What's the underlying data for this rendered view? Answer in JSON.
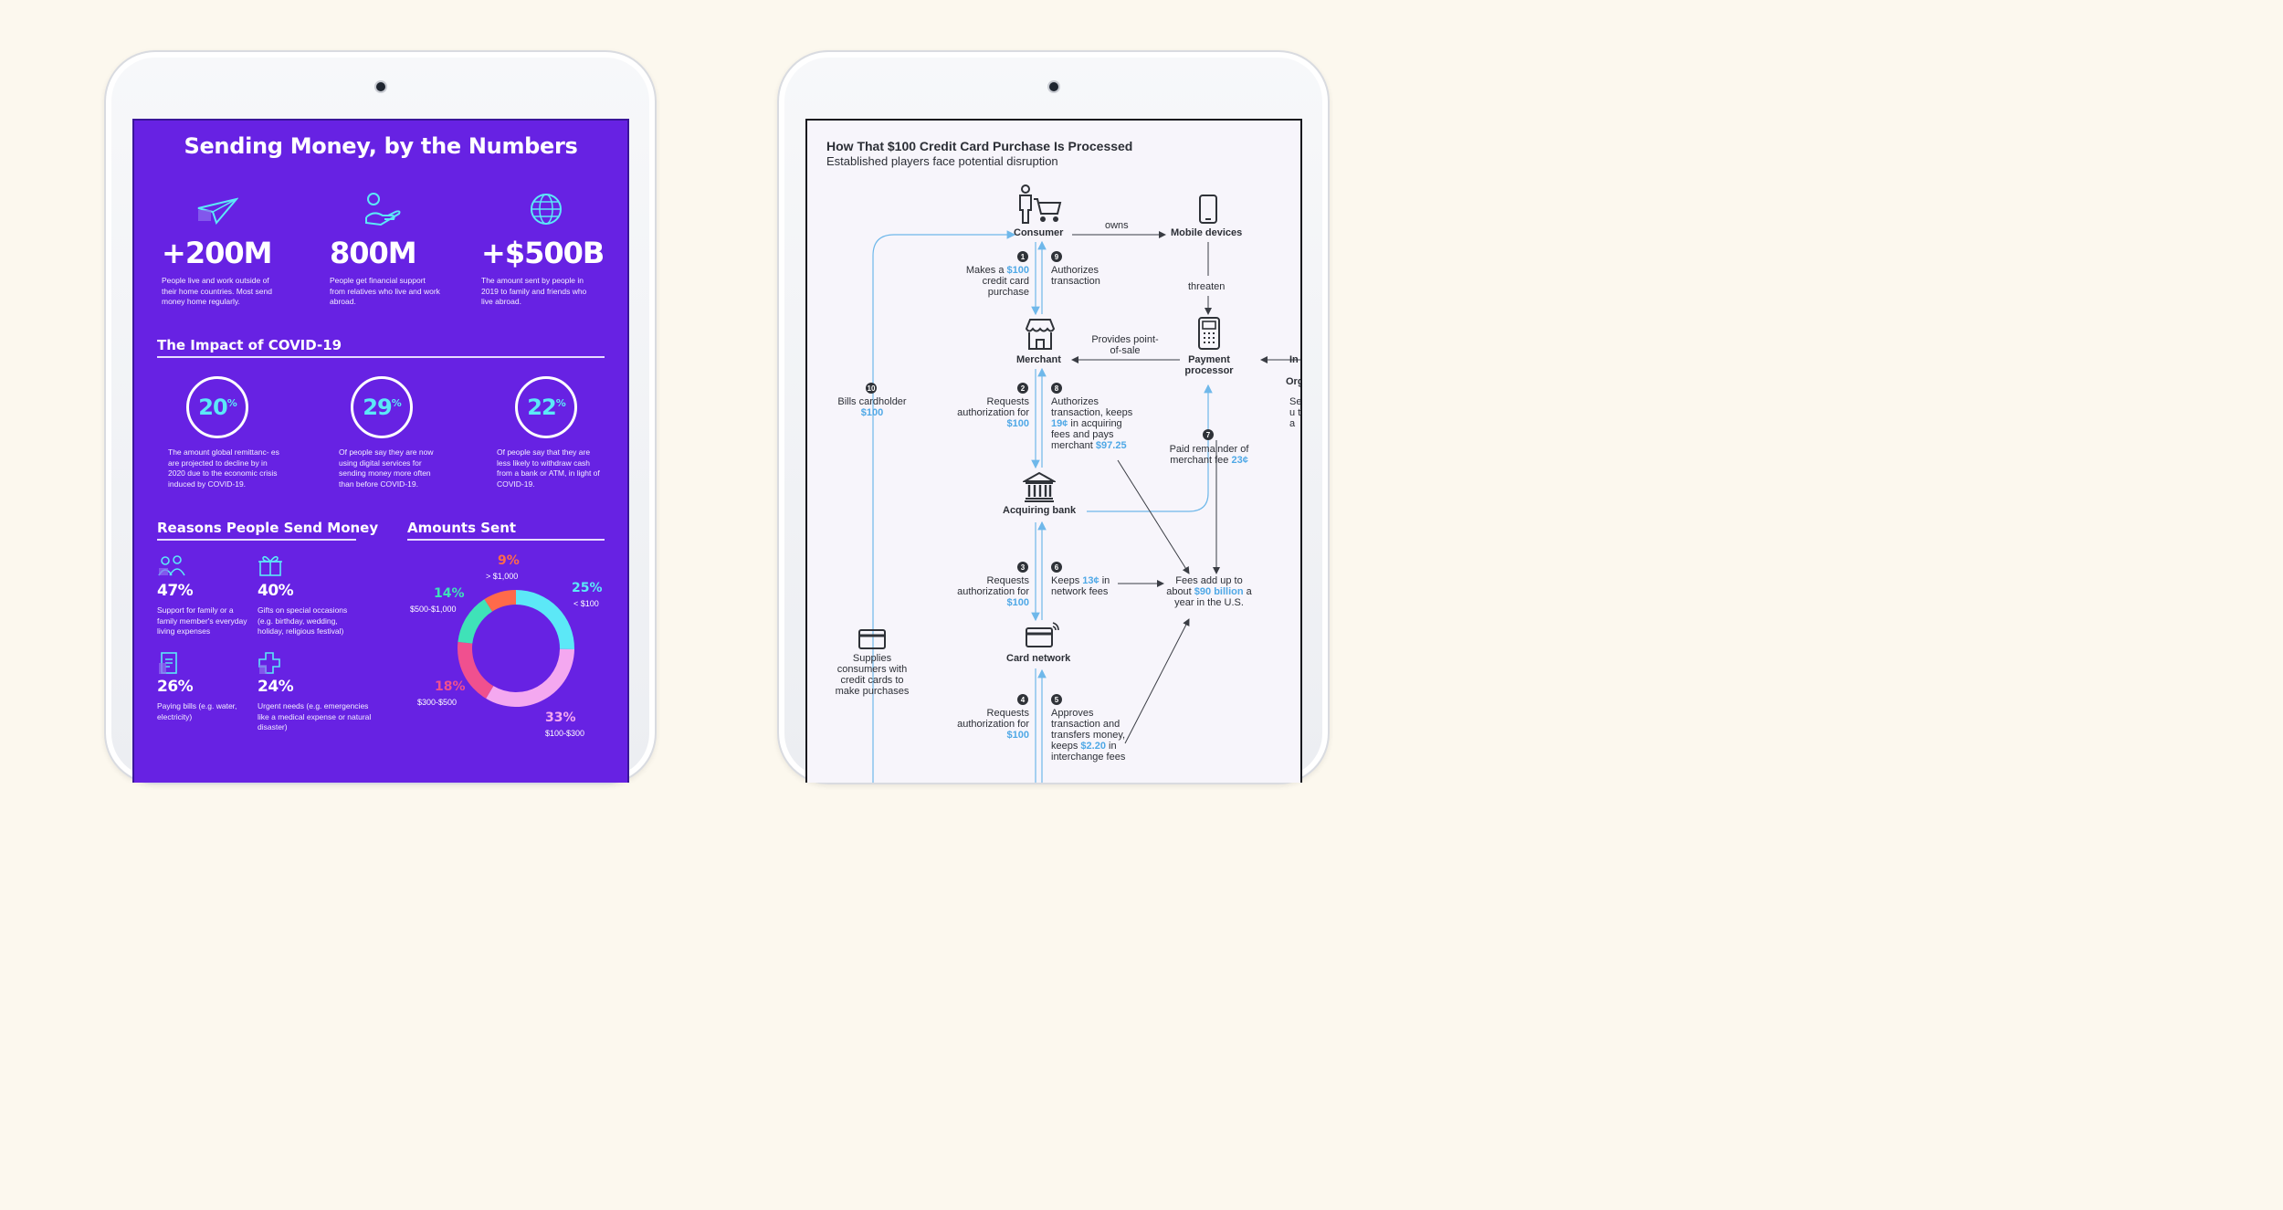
{
  "left": {
    "title": "Sending Money, by the Numbers",
    "stats": [
      {
        "icon": "paper-plane-icon",
        "value": "+200M",
        "text": "People live and work outside of their home countries. Most send money home regularly."
      },
      {
        "icon": "hand-coin-icon",
        "value": "800M",
        "text": "People get financial support from relatives who live and work abroad."
      },
      {
        "icon": "globe-icon",
        "value": "+$500B",
        "text": "The amount sent by people in 2019 to family and friends who live abroad."
      }
    ],
    "covid": {
      "heading": "The Impact of COVID-19",
      "items": [
        {
          "value": "20",
          "unit": "%",
          "text": "The amount global remittanc- es are projected to decline by in 2020 due to the economic crisis induced by COVID-19."
        },
        {
          "value": "29",
          "unit": "%",
          "text": "Of people say they are now using digital services for sending money more often than before COVID-19."
        },
        {
          "value": "22",
          "unit": "%",
          "text": "Of people say that they are less likely to withdraw cash from a bank or ATM, in light of COVID-19."
        }
      ]
    },
    "reasons": {
      "heading": "Reasons People Send Money",
      "items": [
        {
          "icon": "family-icon",
          "value": "47%",
          "text": "Support for family or a family member's everyday living expenses"
        },
        {
          "icon": "gift-icon",
          "value": "40%",
          "text": "Gifts on special occasions (e.g. birthday, wedding, holiday, religious festival)"
        },
        {
          "icon": "bill-icon",
          "value": "26%",
          "text": "Paying bills (e.g. water, electricity)"
        },
        {
          "icon": "medical-cross-icon",
          "value": "24%",
          "text": "Urgent needs (e.g. emergencies like a medical expense or natural disaster)"
        }
      ]
    },
    "amounts": {
      "heading": "Amounts Sent",
      "chart_data": {
        "type": "pie",
        "title": "Amounts Sent",
        "categories": [
          "< $100",
          "$100-$300",
          "$300-$500",
          "$500-$1,000",
          "> $1,000"
        ],
        "values": [
          25,
          33,
          18,
          14,
          9
        ],
        "labels": [
          "25%",
          "33%",
          "18%",
          "14%",
          "9%"
        ],
        "colors": [
          "#5ce8f7",
          "#f4a8f0",
          "#f0508f",
          "#3fe2b8",
          "#ff6a4a"
        ]
      }
    }
  },
  "right": {
    "title": "How That $100 Credit Card Purchase Is Processed",
    "subtitle": "Established players face potential disruption",
    "nodes": {
      "consumer": "Consumer",
      "mobile": "Mobile devices",
      "merchant": "Merchant",
      "processor": "Payment processor",
      "acquiring": "Acquiring bank",
      "network": "Card network",
      "issuer_cut": "In",
      "org_cut": "Org"
    },
    "edges": {
      "owns": "owns",
      "threaten": "threaten",
      "pos": "Provides point-of-sale",
      "set_cut": "Set u to a"
    },
    "steps": {
      "s1": {
        "num": "1",
        "pre": "Makes a",
        "amt": "$100",
        "post": "credit card purchase"
      },
      "s9": {
        "num": "9",
        "text": "Authorizes transaction"
      },
      "s10": {
        "num": "10",
        "pre": "Bills cardholder",
        "amt": "$100"
      },
      "s2": {
        "num": "2",
        "pre": "Requests authorization for",
        "amt": "$100"
      },
      "s8": {
        "num": "8",
        "pre": "Authorizes transaction, keeps",
        "amt": "19¢",
        "mid": "in acquiring fees and pays merchant",
        "amt2": "$97.25"
      },
      "s7": {
        "num": "7",
        "pre": "Paid remainder of merchant fee",
        "amt": "23¢"
      },
      "s3": {
        "num": "3",
        "pre": "Requests authorization for",
        "amt": "$100"
      },
      "s6": {
        "num": "6",
        "pre": "Keeps",
        "amt": "13¢",
        "post": "in network fees"
      },
      "fees": {
        "pre": "Fees add up to about",
        "amt": "$90 billion",
        "post": "a year in the U.S."
      },
      "supplies": {
        "text": "Supplies consumers with credit cards to make purchases"
      },
      "s4": {
        "num": "4",
        "pre": "Requests authorization for",
        "amt": "$100"
      },
      "s5": {
        "num": "5",
        "pre": "Approves transaction and transfers money, keeps",
        "amt": "$2.20",
        "post": "in interchange fees"
      }
    }
  }
}
